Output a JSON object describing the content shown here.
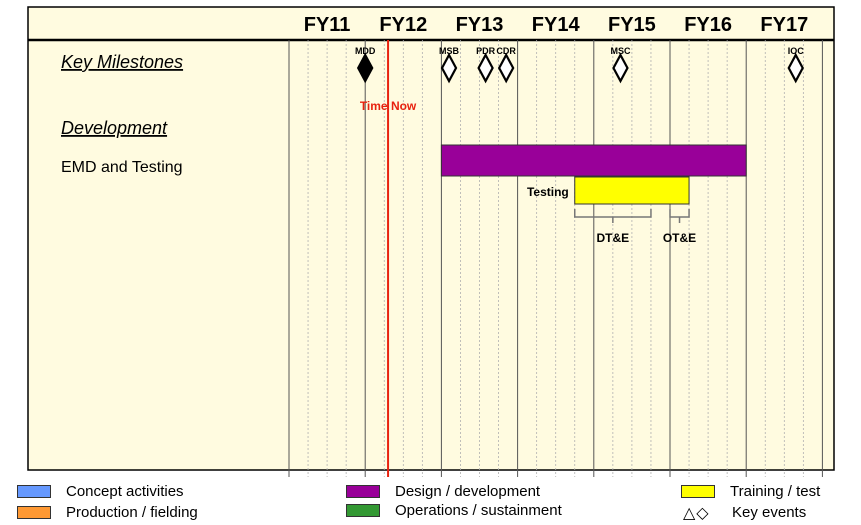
{
  "chart_data": {
    "type": "gantt",
    "fiscal_years": [
      "FY11",
      "FY12",
      "FY13",
      "FY14",
      "FY15",
      "FY16",
      "FY17"
    ],
    "now": {
      "label": "Time  Now",
      "at": 2011.3
    },
    "rows": [
      {
        "id": "milestones",
        "label": "Key Milestones",
        "style": "heading"
      },
      {
        "id": "development",
        "label": "Development",
        "style": "heading"
      },
      {
        "id": "emd",
        "label": "EMD and Testing",
        "style": "normal"
      }
    ],
    "milestones": [
      {
        "label": "MDD",
        "at": 2011.0,
        "filled": true
      },
      {
        "label": "MSB",
        "at": 2012.1,
        "filled": false
      },
      {
        "label": "PDR",
        "at": 2012.58,
        "filled": false
      },
      {
        "label": "CDR",
        "at": 2012.85,
        "filled": false
      },
      {
        "label": "MSC",
        "at": 2014.35,
        "filled": false
      },
      {
        "label": "IOC",
        "at": 2016.65,
        "filled": false
      }
    ],
    "bars": [
      {
        "row": "emd",
        "label": "",
        "start": 2012.0,
        "end": 2016.0,
        "category": "design"
      },
      {
        "row": "emd",
        "label": "Testing",
        "start": 2013.75,
        "end": 2015.25,
        "category": "test"
      }
    ],
    "spans": [
      {
        "label": "DT&E",
        "start": 2013.75,
        "end": 2014.75
      },
      {
        "label": "OT&E",
        "start": 2015.0,
        "end": 2015.25
      }
    ],
    "colors": {
      "concept": "#6699ff",
      "production": "#ff9933",
      "design": "#990099",
      "operations": "#339933",
      "test": "#ffff00",
      "now_line": "#e8220f",
      "background": "#fffbe0"
    },
    "legend": [
      {
        "label": "Concept activities",
        "category": "concept"
      },
      {
        "label": "Production / fielding",
        "category": "production"
      },
      {
        "label": "Design / development",
        "category": "design"
      },
      {
        "label": "Operations / sustainment",
        "category": "operations"
      },
      {
        "label": "Training / test",
        "category": "test"
      },
      {
        "label": "Key events",
        "category": "symbol",
        "symbol": "△◇"
      }
    ]
  }
}
